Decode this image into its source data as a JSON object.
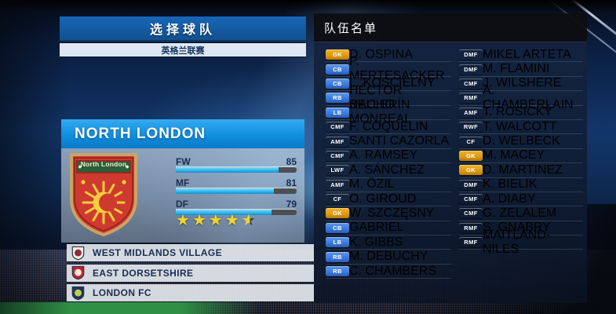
{
  "colors": {
    "select_header_bg": "#1766b8",
    "subtitle_bg": "#dde8f4",
    "subtitle_text": "#16335c",
    "team_header_bg": "#0f8fdd",
    "panel_text": "#1a2c4e",
    "bar_fill": "#2eb3ee",
    "bar_track": "#4b5055",
    "star_yellow": "#f2d42c",
    "star_empty": "#33361f",
    "badge_gk": "#dd9912",
    "badge_df": "#3b79d8",
    "badge_mf": "#4aa42d",
    "badge_fw": "#c93a38",
    "roster_text": "#ffffff"
  },
  "icons": {
    "star": "★"
  },
  "select_panel": {
    "title": "选择球队",
    "league": "英格兰联赛"
  },
  "team": {
    "name": "NORTH LONDON",
    "crest_banner": "North London",
    "stats": [
      {
        "label": "FW",
        "value": 85
      },
      {
        "label": "MF",
        "value": 81
      },
      {
        "label": "DF",
        "value": 79
      }
    ],
    "stars": 4.5
  },
  "team_list": [
    {
      "name": "WEST MIDLANDS VILLAGE",
      "crest_bg": "#f3ede2",
      "crest_emblem": "#8f2a3e"
    },
    {
      "name": "EAST DORSETSHIRE",
      "crest_bg": "#c4202e",
      "crest_emblem": "#f3e8da"
    },
    {
      "name": "LONDON FC",
      "crest_bg": "#20345c",
      "crest_emblem": "#bcd24b"
    }
  ],
  "roster": {
    "title": "队伍名单",
    "columns": [
      [
        {
          "pos": "GK",
          "type": "gk",
          "name": "D. OSPINA"
        },
        {
          "pos": "CB",
          "type": "df",
          "name": "P. MERTESACKER"
        },
        {
          "pos": "CB",
          "type": "df",
          "name": "L. KOSCIELNY"
        },
        {
          "pos": "RB",
          "type": "df",
          "name": "HÉCTOR BELLERÍN"
        },
        {
          "pos": "LB",
          "type": "df",
          "name": "NACHO MONREAL"
        },
        {
          "pos": "CMF",
          "type": "mf",
          "name": "F. COQUELIN"
        },
        {
          "pos": "AMF",
          "type": "mf",
          "name": "SANTI CAZORLA"
        },
        {
          "pos": "CMF",
          "type": "mf",
          "name": "A. RAMSEY"
        },
        {
          "pos": "LWF",
          "type": "fw",
          "name": "A. SÁNCHEZ"
        },
        {
          "pos": "AMF",
          "type": "mf",
          "name": "M. ÖZIL"
        },
        {
          "pos": "CF",
          "type": "fw",
          "name": "O. GIROUD"
        },
        {
          "pos": "GK",
          "type": "gk",
          "name": "W. SZCZĘSNY"
        },
        {
          "pos": "CB",
          "type": "df",
          "name": "GABRIEL"
        },
        {
          "pos": "LB",
          "type": "df",
          "name": "K. GIBBS"
        },
        {
          "pos": "RB",
          "type": "df",
          "name": "M. DEBUCHY"
        },
        {
          "pos": "RB",
          "type": "df",
          "name": "C. CHAMBERS"
        }
      ],
      [
        {
          "pos": "DMF",
          "type": "mf",
          "name": "MIKEL ARTETA"
        },
        {
          "pos": "DMF",
          "type": "mf",
          "name": "M. FLAMINI"
        },
        {
          "pos": "CMF",
          "type": "mf",
          "name": "J. WILSHERE"
        },
        {
          "pos": "RMF",
          "type": "mf",
          "name": "A. CHAMBERLAIN"
        },
        {
          "pos": "AMF",
          "type": "mf",
          "name": "T. ROSICKÝ"
        },
        {
          "pos": "RWF",
          "type": "fw",
          "name": "T. WALCOTT"
        },
        {
          "pos": "CF",
          "type": "fw",
          "name": "D. WELBECK"
        },
        {
          "pos": "GK",
          "type": "gk",
          "name": "M. MACEY"
        },
        {
          "pos": "GK",
          "type": "gk",
          "name": "D. MARTINEZ"
        },
        {
          "pos": "DMF",
          "type": "mf",
          "name": "K. BIELIK"
        },
        {
          "pos": "CMF",
          "type": "mf",
          "name": "A. DIABY"
        },
        {
          "pos": "CMF",
          "type": "mf",
          "name": "G. ZELALEM"
        },
        {
          "pos": "RMF",
          "type": "mf",
          "name": "S. GNABRY"
        },
        {
          "pos": "RMF",
          "type": "mf",
          "name": "MAITLAND-NILES"
        }
      ]
    ]
  }
}
